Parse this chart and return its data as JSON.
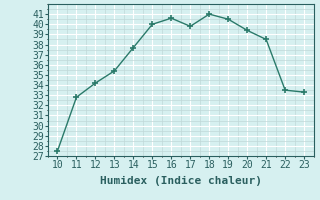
{
  "x": [
    10,
    11,
    12,
    13,
    14,
    15,
    16,
    17,
    18,
    19,
    20,
    21,
    22,
    23
  ],
  "y": [
    27.5,
    32.8,
    34.2,
    35.4,
    37.7,
    40.0,
    40.6,
    39.8,
    41.0,
    40.5,
    39.4,
    38.5,
    33.5,
    33.3
  ],
  "line_color": "#2a7a6a",
  "marker": "+",
  "marker_size": 5,
  "marker_lw": 1.2,
  "bg_color": "#d6f0f0",
  "grid_major_color": "#ffffff",
  "grid_minor_color": "#c0d8d8",
  "xlabel": "Humidex (Indice chaleur)",
  "xlim": [
    9.5,
    23.5
  ],
  "ylim": [
    27,
    42
  ],
  "xticks": [
    10,
    11,
    12,
    13,
    14,
    15,
    16,
    17,
    18,
    19,
    20,
    21,
    22,
    23
  ],
  "yticks": [
    27,
    28,
    29,
    30,
    31,
    32,
    33,
    34,
    35,
    36,
    37,
    38,
    39,
    40,
    41
  ],
  "font_color": "#2a5f5f",
  "xlabel_fontsize": 8,
  "tick_fontsize": 7
}
